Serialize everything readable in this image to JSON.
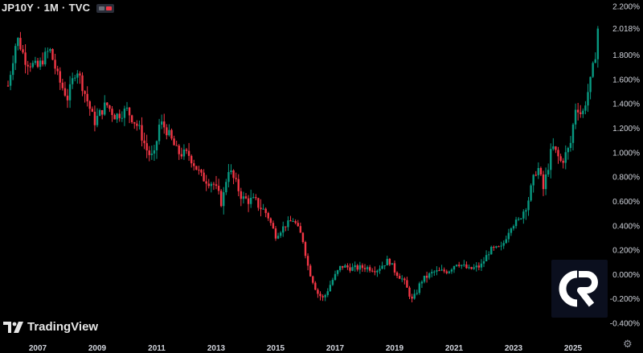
{
  "header": {
    "symbol": "JP10Y",
    "interval": "1M",
    "exchange": "TVC",
    "separator": "·"
  },
  "watermark": {
    "brand": "TradingView",
    "badge_text": "CR"
  },
  "colors": {
    "up": "#089981",
    "down": "#f23645",
    "background": "#000000",
    "text": "#d1d4dc",
    "badge": "#0b0f1e"
  },
  "icons": {
    "settings": "gear-icon"
  },
  "chart_data": {
    "type": "candlestick",
    "title": "JP10Y · 1M · TVC",
    "y_unit": "%",
    "ylim": [
      -0.4,
      2.2
    ],
    "y_ticks": [
      "2.200%",
      "2.018%",
      "1.800%",
      "1.600%",
      "1.400%",
      "1.200%",
      "1.000%",
      "0.800%",
      "0.600%",
      "0.400%",
      "0.200%",
      "0.000%",
      "-0.200%",
      "-0.400%"
    ],
    "x_ticks": [
      "2007",
      "2009",
      "2011",
      "2013",
      "2015",
      "2017",
      "2019",
      "2021",
      "2023",
      "2025"
    ],
    "grid": false,
    "last_price": 2.018,
    "path": [
      [
        2006.0,
        1.55
      ],
      [
        2006.3,
        1.95
      ],
      [
        2006.6,
        1.75
      ],
      [
        2007.0,
        1.7
      ],
      [
        2007.4,
        1.85
      ],
      [
        2007.7,
        1.6
      ],
      [
        2008.0,
        1.45
      ],
      [
        2008.3,
        1.7
      ],
      [
        2008.5,
        1.55
      ],
      [
        2008.9,
        1.25
      ],
      [
        2009.3,
        1.4
      ],
      [
        2009.6,
        1.3
      ],
      [
        2010.0,
        1.35
      ],
      [
        2010.4,
        1.2
      ],
      [
        2010.7,
        1.0
      ],
      [
        2010.9,
        0.95
      ],
      [
        2011.1,
        1.25
      ],
      [
        2011.3,
        1.2
      ],
      [
        2011.7,
        1.0
      ],
      [
        2012.1,
        0.98
      ],
      [
        2012.5,
        0.8
      ],
      [
        2012.9,
        0.75
      ],
      [
        2013.2,
        0.58
      ],
      [
        2013.4,
        0.88
      ],
      [
        2013.9,
        0.62
      ],
      [
        2014.3,
        0.6
      ],
      [
        2014.7,
        0.5
      ],
      [
        2015.0,
        0.32
      ],
      [
        2015.3,
        0.4
      ],
      [
        2015.6,
        0.45
      ],
      [
        2015.9,
        0.3
      ],
      [
        2016.1,
        0.05
      ],
      [
        2016.4,
        -0.15
      ],
      [
        2016.6,
        -0.2
      ],
      [
        2016.9,
        -0.05
      ],
      [
        2017.2,
        0.07
      ],
      [
        2017.6,
        0.05
      ],
      [
        2018.0,
        0.06
      ],
      [
        2018.4,
        0.04
      ],
      [
        2018.8,
        0.12
      ],
      [
        2019.0,
        0.03
      ],
      [
        2019.3,
        -0.05
      ],
      [
        2019.6,
        -0.22
      ],
      [
        2019.9,
        -0.05
      ],
      [
        2020.3,
        0.02
      ],
      [
        2020.8,
        0.03
      ],
      [
        2021.1,
        0.1
      ],
      [
        2021.5,
        0.04
      ],
      [
        2021.9,
        0.07
      ],
      [
        2022.2,
        0.2
      ],
      [
        2022.6,
        0.22
      ],
      [
        2022.9,
        0.4
      ],
      [
        2023.2,
        0.45
      ],
      [
        2023.5,
        0.62
      ],
      [
        2023.8,
        0.9
      ],
      [
        2024.0,
        0.7
      ],
      [
        2024.3,
        1.05
      ],
      [
        2024.6,
        0.92
      ],
      [
        2024.9,
        1.05
      ],
      [
        2025.1,
        1.4
      ],
      [
        2025.3,
        1.3
      ],
      [
        2025.6,
        1.6
      ],
      [
        2025.9,
        2.02
      ]
    ]
  }
}
